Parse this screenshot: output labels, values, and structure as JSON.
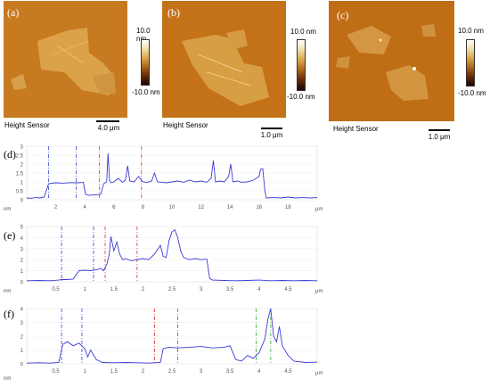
{
  "afm_panels": [
    {
      "tag": "(a)",
      "caption": "Height Sensor",
      "scale": "4.0 μm",
      "cmax": "10.0 nm",
      "cmin": "-10.0 nm"
    },
    {
      "tag": "(b)",
      "caption": "Height Sensor",
      "scale": "1.0 μm",
      "cmax": "10.0 nm",
      "cmin": "-10.0 nm"
    },
    {
      "tag": "(c)",
      "caption": "Height Sensor",
      "scale": "1.0 μm",
      "cmax": "10.0 nm",
      "cmin": "-10.0 nm"
    }
  ],
  "colors": {
    "afm_bg": "#c8751c",
    "flake": "#d9a64a",
    "profile": "#3a3ad8",
    "marker_blue": "#3344cc",
    "marker_red": "#dd3333",
    "marker_green": "#33aa33",
    "tick_text": "#555555"
  },
  "chart_data": [
    {
      "type": "line",
      "tag": "(d)",
      "ylabel": "nm",
      "xlabel": "μm",
      "xlim": [
        0,
        20
      ],
      "ylim": [
        0,
        3
      ],
      "xticks": [
        2,
        4,
        6,
        8,
        10,
        12,
        14,
        16,
        18
      ],
      "yticks": [
        0,
        0.5,
        1,
        1.5,
        2,
        2.5,
        3
      ],
      "markers": [
        {
          "x": 1.5,
          "color": "blue"
        },
        {
          "x": 3.4,
          "color": "blue"
        },
        {
          "x": 5.0,
          "color": "red"
        },
        {
          "x": 7.9,
          "color": "red"
        }
      ],
      "x": [
        0,
        0.3,
        0.6,
        0.9,
        1.2,
        1.5,
        1.7,
        2.0,
        2.5,
        3.0,
        3.5,
        3.9,
        4.05,
        4.3,
        4.7,
        5.1,
        5.3,
        5.5,
        5.6,
        5.7,
        5.8,
        6.0,
        6.3,
        6.6,
        6.8,
        6.95,
        7.1,
        7.4,
        7.7,
        8.0,
        8.3,
        8.6,
        8.8,
        9.0,
        9.3,
        9.6,
        10.0,
        10.4,
        10.8,
        11.2,
        11.6,
        12.0,
        12.4,
        12.7,
        12.85,
        13.0,
        13.3,
        13.6,
        13.9,
        14.05,
        14.2,
        14.5,
        14.8,
        15.2,
        15.6,
        16.0,
        16.1,
        16.25,
        16.4,
        16.5,
        17.0,
        17.5,
        18.0,
        18.5,
        19.0,
        19.5,
        20.0
      ],
      "y": [
        0.1,
        0.08,
        0.12,
        0.1,
        0.15,
        0.9,
        0.92,
        0.95,
        0.93,
        0.96,
        0.95,
        0.97,
        0.3,
        0.25,
        0.28,
        0.3,
        0.9,
        1.0,
        2.6,
        1.1,
        0.95,
        1.0,
        1.2,
        0.98,
        1.1,
        1.9,
        1.05,
        1.0,
        1.3,
        1.0,
        0.97,
        1.05,
        1.5,
        1.0,
        0.98,
        0.95,
        1.0,
        1.05,
        0.98,
        1.1,
        1.0,
        1.05,
        0.98,
        1.2,
        2.2,
        1.0,
        1.05,
        1.0,
        1.3,
        2.0,
        1.0,
        1.05,
        0.98,
        1.0,
        1.1,
        1.3,
        1.7,
        1.75,
        0.5,
        0.1,
        0.12,
        0.1,
        0.15,
        0.1,
        0.12,
        0.1,
        0.12
      ]
    },
    {
      "type": "line",
      "tag": "(e)",
      "ylabel": "nm",
      "xlabel": "μm",
      "xlim": [
        0,
        5
      ],
      "ylim": [
        0,
        5
      ],
      "xticks": [
        0.5,
        1,
        1.5,
        2,
        2.5,
        3,
        3.5,
        4,
        4.5
      ],
      "yticks": [
        0,
        1,
        2,
        3,
        4,
        5
      ],
      "markers": [
        {
          "x": 0.6,
          "color": "blue"
        },
        {
          "x": 1.15,
          "color": "blue"
        },
        {
          "x": 1.35,
          "color": "red"
        },
        {
          "x": 1.9,
          "color": "red"
        }
      ],
      "x": [
        0,
        0.2,
        0.4,
        0.55,
        0.6,
        0.7,
        0.8,
        0.9,
        1.0,
        1.1,
        1.2,
        1.28,
        1.32,
        1.38,
        1.42,
        1.45,
        1.5,
        1.55,
        1.6,
        1.65,
        1.7,
        1.8,
        1.9,
        2.0,
        2.1,
        2.2,
        2.3,
        2.35,
        2.4,
        2.45,
        2.5,
        2.55,
        2.6,
        2.65,
        2.7,
        2.8,
        2.9,
        3.0,
        3.1,
        3.15,
        3.2,
        3.4,
        3.6,
        3.8,
        4.0,
        4.2,
        4.4,
        4.6,
        4.8,
        5.0
      ],
      "y": [
        0.1,
        0.12,
        0.1,
        0.15,
        0.2,
        0.2,
        0.25,
        1.0,
        1.05,
        1.0,
        1.1,
        1.2,
        1.0,
        1.6,
        2.5,
        4.1,
        2.8,
        3.6,
        2.5,
        2.0,
        2.1,
        1.9,
        2.0,
        2.1,
        2.0,
        2.5,
        3.3,
        2.3,
        2.2,
        3.7,
        4.5,
        4.7,
        4.0,
        2.8,
        2.2,
        2.0,
        2.1,
        2.0,
        2.05,
        0.3,
        0.15,
        0.12,
        0.1,
        0.12,
        0.15,
        0.1,
        0.12,
        0.1,
        0.12,
        0.1
      ]
    },
    {
      "type": "line",
      "tag": "(f)",
      "ylabel": "nm",
      "xlabel": "μm",
      "xlim": [
        0,
        5
      ],
      "ylim": [
        0,
        4
      ],
      "xticks": [
        0.5,
        1,
        1.5,
        2,
        2.5,
        3,
        3.5,
        4,
        4.5
      ],
      "yticks": [
        0,
        1,
        2,
        3,
        4
      ],
      "markers": [
        {
          "x": 0.6,
          "color": "blue"
        },
        {
          "x": 0.95,
          "color": "blue"
        },
        {
          "x": 2.2,
          "color": "red"
        },
        {
          "x": 2.6,
          "color": "red"
        },
        {
          "x": 3.95,
          "color": "green"
        },
        {
          "x": 4.2,
          "color": "green"
        }
      ],
      "x": [
        0,
        0.2,
        0.4,
        0.55,
        0.62,
        0.7,
        0.8,
        0.9,
        1.0,
        1.05,
        1.1,
        1.2,
        1.3,
        1.5,
        1.7,
        1.9,
        2.1,
        2.3,
        2.35,
        2.45,
        2.6,
        2.8,
        3.0,
        3.2,
        3.4,
        3.5,
        3.6,
        3.7,
        3.8,
        3.9,
        4.0,
        4.1,
        4.15,
        4.2,
        4.25,
        4.3,
        4.35,
        4.4,
        4.5,
        4.6,
        4.8,
        5.0
      ],
      "y": [
        0.05,
        0.08,
        0.05,
        0.1,
        1.4,
        1.6,
        1.3,
        1.5,
        1.1,
        0.5,
        1.0,
        0.3,
        0.1,
        0.08,
        0.1,
        0.08,
        0.05,
        0.1,
        1.1,
        1.2,
        1.15,
        1.2,
        1.25,
        1.15,
        1.2,
        1.3,
        0.3,
        0.2,
        0.6,
        0.4,
        0.8,
        1.8,
        3.2,
        4.0,
        2.0,
        1.6,
        2.7,
        1.3,
        0.6,
        0.2,
        0.1,
        0.12
      ]
    }
  ]
}
